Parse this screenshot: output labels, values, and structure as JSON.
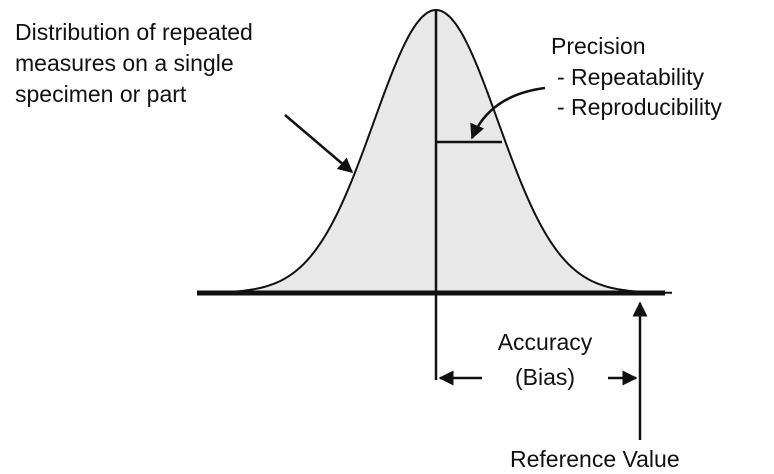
{
  "labels": {
    "distribution": [
      "Distribution of repeated",
      "measures on a single",
      "specimen or part"
    ],
    "precision": {
      "title": "Precision",
      "items": [
        "- Repeatability",
        "- Reproducibility"
      ]
    },
    "accuracy": [
      "Accuracy",
      "(Bias)"
    ],
    "reference": "Reference Value"
  }
}
